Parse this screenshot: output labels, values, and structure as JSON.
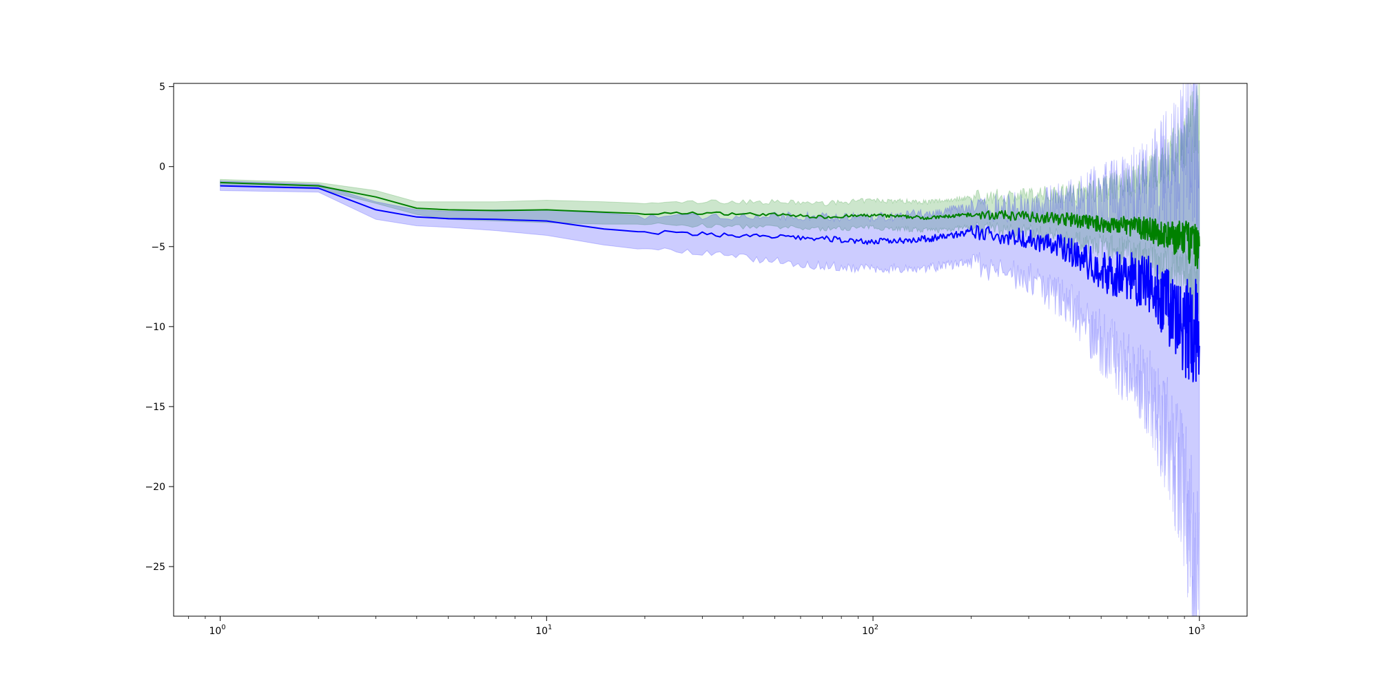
{
  "chart_data": {
    "type": "line",
    "title": "",
    "xlabel": "",
    "ylabel": "",
    "xscale": "log",
    "xlim": [
      0.72,
      1400
    ],
    "ylim": [
      -28.1,
      5.2
    ],
    "grid": false,
    "legend": "none",
    "x_ticks": [
      {
        "value": 1,
        "base": "10",
        "exp": "0"
      },
      {
        "value": 10,
        "base": "10",
        "exp": "1"
      },
      {
        "value": 100,
        "base": "10",
        "exp": "2"
      },
      {
        "value": 1000,
        "base": "10",
        "exp": "3"
      }
    ],
    "y_ticks": [
      {
        "value": 5,
        "label": "5"
      },
      {
        "value": 0,
        "label": "0"
      },
      {
        "value": -5,
        "label": "−5"
      },
      {
        "value": -10,
        "label": "−10"
      },
      {
        "value": -15,
        "label": "−15"
      },
      {
        "value": -20,
        "label": "−20"
      },
      {
        "value": -25,
        "label": "−25"
      }
    ],
    "series": [
      {
        "color": "#008000",
        "band_color": "#008000",
        "x": [
          1,
          2,
          3,
          4,
          5,
          7,
          10,
          15,
          20,
          30,
          50,
          70,
          100,
          150,
          200,
          300,
          400,
          500,
          600,
          700,
          800,
          900,
          1000
        ],
        "y": [
          -1.0,
          -1.2,
          -1.9,
          -2.6,
          -2.7,
          -2.75,
          -2.7,
          -2.85,
          -2.95,
          -2.9,
          -3.0,
          -3.15,
          -3.05,
          -3.2,
          -3.0,
          -3.1,
          -3.3,
          -3.6,
          -3.7,
          -3.9,
          -4.4,
          -4.5,
          -5.2
        ],
        "lower": [
          -1.2,
          -1.4,
          -2.3,
          -3.0,
          -3.3,
          -3.4,
          -3.5,
          -3.6,
          -3.6,
          -3.7,
          -3.8,
          -3.9,
          -3.8,
          -4.0,
          -3.8,
          -4.1,
          -4.6,
          -5.0,
          -5.3,
          -5.8,
          -6.3,
          -6.8,
          -8.0
        ],
        "upper": [
          -0.8,
          -1.0,
          -1.5,
          -2.2,
          -2.2,
          -2.2,
          -2.1,
          -2.2,
          -2.3,
          -2.2,
          -2.2,
          -2.3,
          -2.1,
          -2.2,
          -1.9,
          -1.8,
          -1.6,
          -1.4,
          -1.0,
          -0.5,
          0.5,
          1.5,
          3.5
        ]
      },
      {
        "color": "#0000ff",
        "band_color": "#0000ff",
        "x": [
          1,
          2,
          3,
          4,
          5,
          7,
          10,
          15,
          20,
          30,
          50,
          70,
          100,
          150,
          200,
          300,
          400,
          500,
          600,
          700,
          800,
          900,
          1000
        ],
        "y": [
          -1.2,
          -1.35,
          -2.7,
          -3.15,
          -3.25,
          -3.3,
          -3.4,
          -3.9,
          -4.1,
          -4.2,
          -4.4,
          -4.5,
          -4.7,
          -4.5,
          -4.1,
          -4.5,
          -5.2,
          -6.6,
          -6.8,
          -7.3,
          -8.8,
          -10.2,
          -10.5
        ],
        "lower": [
          -1.5,
          -1.6,
          -3.3,
          -3.7,
          -3.8,
          -4.0,
          -4.3,
          -4.9,
          -5.2,
          -5.4,
          -5.9,
          -6.2,
          -6.4,
          -6.3,
          -6.0,
          -7.0,
          -8.5,
          -11.0,
          -12.5,
          -14.0,
          -17.0,
          -20.5,
          -27.0
        ],
        "upper": [
          -0.9,
          -1.1,
          -2.2,
          -2.7,
          -2.8,
          -2.7,
          -2.7,
          -2.9,
          -3.1,
          -3.1,
          -3.1,
          -3.1,
          -3.2,
          -2.9,
          -2.6,
          -2.5,
          -2.2,
          -1.8,
          -1.5,
          -1.0,
          0.0,
          1.0,
          2.0
        ]
      }
    ]
  }
}
